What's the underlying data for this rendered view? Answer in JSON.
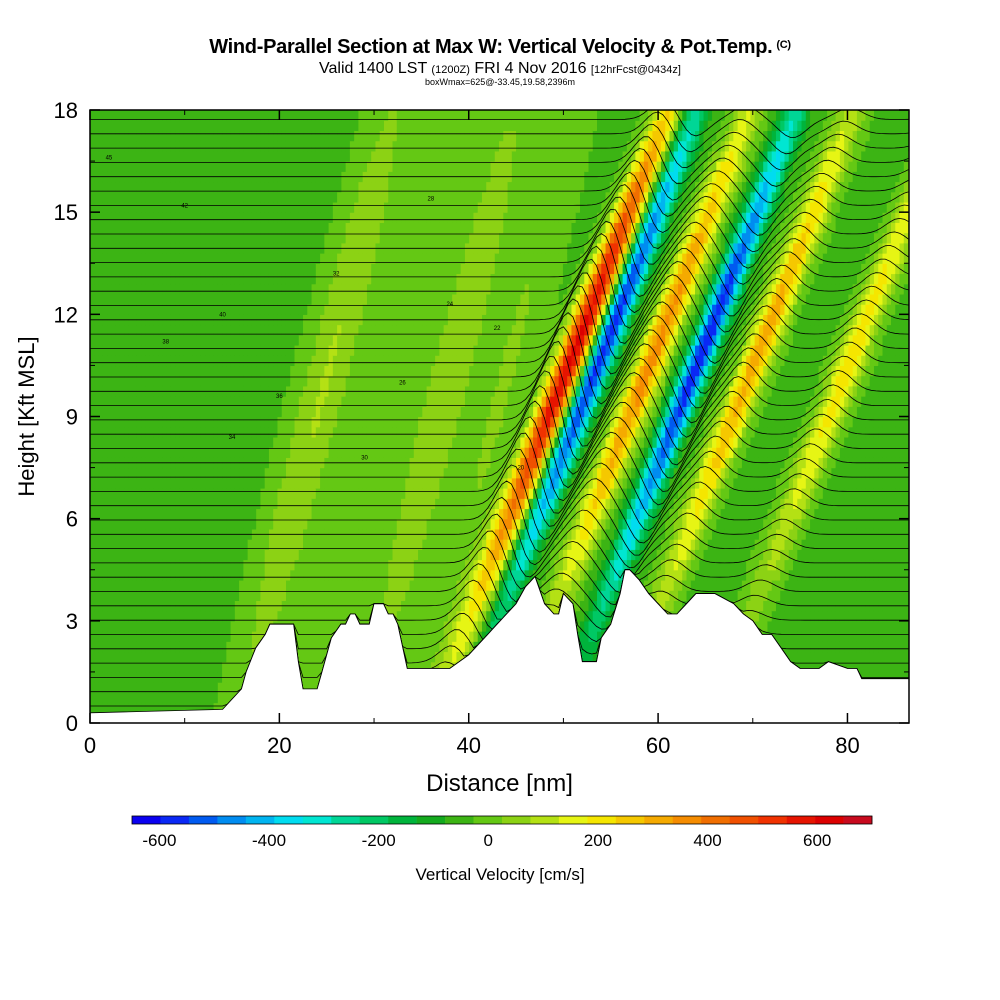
{
  "title": "Wind-Parallel Section at Max W: Vertical Velocity & Pot.Temp.",
  "copyright": "(C)",
  "subtitle": {
    "valid": "Valid 1400 LST",
    "utc": "(1200Z)",
    "date": "FRI 4 Nov 2016",
    "forecast": "[12hrFcst@0434z]"
  },
  "subsubtitle": "boxWmax=625@-33.45,19.58,2396m",
  "chart_data": {
    "type": "heatmap",
    "xlabel": "Distance [nm]",
    "ylabel": "Height [Kft MSL]",
    "xlim": [
      0,
      86.5
    ],
    "ylim": [
      0,
      18
    ],
    "xticks": [
      0,
      20,
      40,
      60,
      80
    ],
    "yticks": [
      0,
      3,
      6,
      9,
      12,
      15,
      18
    ],
    "colorbar": {
      "label": "Vertical Velocity [cm/s]",
      "ticks": [
        -600,
        -400,
        -200,
        0,
        200,
        400,
        600
      ],
      "range": [
        -650,
        700
      ],
      "colors": [
        "#0a00f0",
        "#0a28f5",
        "#005af0",
        "#008cf0",
        "#00b4f0",
        "#00dcf0",
        "#00e6d2",
        "#00d696",
        "#00c864",
        "#00b43c",
        "#14aa1e",
        "#3cb414",
        "#64c814",
        "#8cd214",
        "#b4e114",
        "#e6f514",
        "#f5e600",
        "#f5c800",
        "#f5aa00",
        "#f58c00",
        "#f06e00",
        "#f05000",
        "#f03200",
        "#e61400",
        "#dc0000",
        "#c80a1e"
      ]
    },
    "series": [
      {
        "type": "updraft",
        "x": 48.5,
        "peak_cm_s": 650
      },
      {
        "type": "downdraft",
        "x": 51.5,
        "peak_cm_s": -550
      },
      {
        "type": "updraft",
        "x": 57.0,
        "peak_cm_s": 400
      },
      {
        "type": "downdraft",
        "x": 62.0,
        "peak_cm_s": -550
      },
      {
        "type": "updraft",
        "x": 68.0,
        "peak_cm_s": 350
      },
      {
        "type": "updraft",
        "x": 78.0,
        "peak_cm_s": 250
      }
    ],
    "terrain_kft": {
      "x": [
        0,
        14,
        16,
        16.5,
        17.5,
        18.5,
        19,
        21.5,
        22,
        22.5,
        23,
        24,
        24.5,
        25,
        25.5,
        26.5,
        27,
        27.5,
        28,
        28.5,
        29.5,
        30,
        31,
        31.5,
        32,
        32.5,
        33.5,
        34,
        38,
        40,
        41,
        42,
        43,
        44,
        45,
        46,
        47,
        48,
        49,
        49.5,
        50,
        51,
        51.5,
        52,
        53,
        53.5,
        54,
        55,
        56,
        56.5,
        57,
        58,
        59,
        60,
        61,
        62,
        63,
        64,
        66,
        68,
        69,
        70,
        71,
        72,
        74,
        75,
        76,
        77,
        78,
        80,
        81,
        81.5,
        82,
        86.5
      ],
      "values": [
        0.3,
        0.4,
        1.0,
        1.5,
        2.2,
        2.6,
        2.9,
        2.9,
        1.8,
        1.0,
        1.0,
        1.0,
        1.5,
        2.0,
        2.5,
        2.9,
        2.9,
        3.2,
        3.2,
        2.9,
        2.9,
        3.5,
        3.5,
        3.2,
        3.2,
        2.9,
        1.6,
        1.6,
        1.6,
        2.0,
        2.3,
        2.6,
        2.9,
        3.2,
        3.5,
        4.0,
        4.3,
        3.5,
        3.2,
        3.2,
        3.8,
        3.5,
        2.6,
        1.8,
        1.8,
        1.8,
        2.5,
        2.9,
        3.8,
        4.5,
        4.5,
        4.2,
        3.8,
        3.5,
        3.2,
        3.2,
        3.5,
        3.8,
        3.8,
        3.5,
        3.2,
        3.0,
        2.6,
        2.6,
        1.8,
        1.6,
        1.6,
        1.6,
        1.8,
        1.6,
        1.6,
        1.3,
        1.3,
        1.3
      ]
    },
    "theta_contours": {
      "labels": [
        "45",
        "42",
        "40",
        "38",
        "36",
        "34",
        "32",
        "30",
        "28",
        "26",
        "24",
        "22",
        "20"
      ]
    }
  }
}
